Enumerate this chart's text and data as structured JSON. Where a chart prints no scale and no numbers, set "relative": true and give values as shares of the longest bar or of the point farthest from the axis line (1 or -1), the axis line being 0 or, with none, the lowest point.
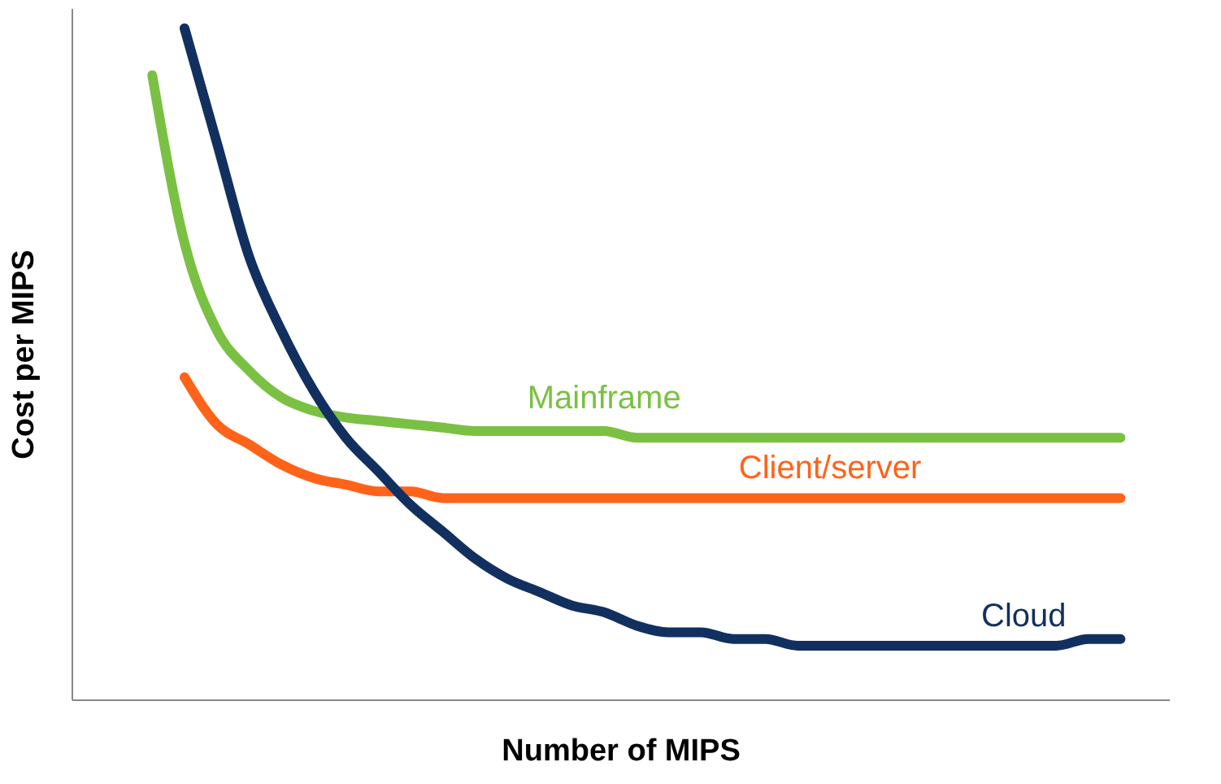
{
  "chart_data": {
    "type": "line",
    "relative": true,
    "xlabel": "Number of MIPS",
    "ylabel": "Cost per MIPS",
    "categories": [
      null,
      null,
      null,
      null,
      null,
      null,
      null,
      null,
      null,
      null,
      null,
      null,
      null,
      null,
      null,
      null,
      null,
      null,
      null,
      null,
      null,
      null,
      null,
      null,
      null,
      null,
      null,
      null,
      null,
      null,
      null
    ],
    "series": [
      {
        "name": "Mainframe",
        "color": "#7ac143",
        "values": [
          0.93,
          0.68,
          0.55,
          0.49,
          0.45,
          0.43,
          0.42,
          0.415,
          0.41,
          0.405,
          0.4,
          0.4,
          0.4,
          0.4,
          0.4,
          0.39,
          0.39,
          0.39,
          0.39,
          0.39,
          0.39,
          0.39,
          0.39,
          0.39,
          0.39,
          0.39,
          0.39,
          0.39,
          0.39,
          0.39,
          0.39
        ]
      },
      {
        "name": "Client/server",
        "color": "#ff6319",
        "values": [
          null,
          0.48,
          0.41,
          0.38,
          0.35,
          0.33,
          0.32,
          0.31,
          0.31,
          0.3,
          0.3,
          0.3,
          0.3,
          0.3,
          0.3,
          0.3,
          0.3,
          0.3,
          0.3,
          0.3,
          0.3,
          0.3,
          0.3,
          0.3,
          0.3,
          0.3,
          0.3,
          0.3,
          0.3,
          0.3,
          0.3
        ]
      },
      {
        "name": "Cloud",
        "color": "#12305f",
        "values": [
          null,
          1.0,
          0.83,
          0.66,
          0.55,
          0.46,
          0.39,
          0.34,
          0.29,
          0.25,
          0.21,
          0.18,
          0.16,
          0.14,
          0.13,
          0.11,
          0.1,
          0.1,
          0.09,
          0.09,
          0.08,
          0.08,
          0.08,
          0.08,
          0.08,
          0.08,
          0.08,
          0.08,
          0.08,
          0.09,
          0.09
        ]
      }
    ]
  }
}
